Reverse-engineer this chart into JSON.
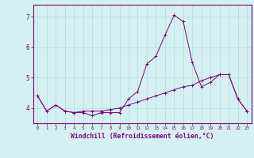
{
  "x": [
    0,
    1,
    2,
    3,
    4,
    5,
    6,
    7,
    8,
    9,
    10,
    11,
    12,
    13,
    14,
    15,
    16,
    17,
    18,
    19,
    20,
    21,
    22,
    23
  ],
  "line1": [
    4.4,
    3.9,
    4.1,
    3.9,
    3.85,
    3.85,
    3.75,
    3.85,
    3.85,
    3.85,
    4.3,
    4.55,
    5.45,
    5.7,
    6.4,
    7.05,
    6.85,
    5.5,
    4.7,
    4.85,
    5.1,
    5.1,
    4.3,
    3.9
  ],
  "line2": [
    4.4,
    3.9,
    4.1,
    3.9,
    3.85,
    3.9,
    3.9,
    3.9,
    3.95,
    4.0,
    4.1,
    4.2,
    4.3,
    4.4,
    4.5,
    4.6,
    4.7,
    4.75,
    4.9,
    5.0,
    5.1,
    5.1,
    4.3,
    3.9
  ],
  "line_color": "#800080",
  "background_color": "#d4f0f0",
  "grid_color": "#b0dede",
  "ylabel_values": [
    4,
    5,
    6,
    7
  ],
  "ylim": [
    3.5,
    7.4
  ],
  "xlim": [
    -0.5,
    23.5
  ],
  "xlabel": "Windchill (Refroidissement éolien,°C)",
  "marker": "+"
}
